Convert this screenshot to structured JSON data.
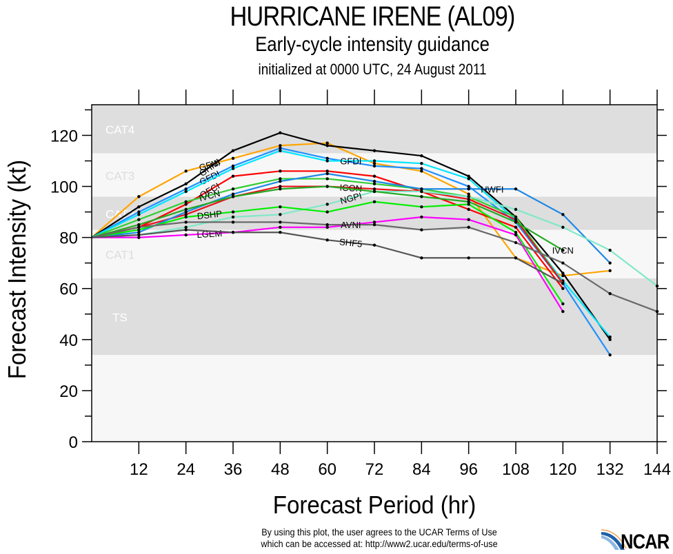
{
  "header": {
    "title": "HURRICANE IRENE (AL09)",
    "subtitle": "Early-cycle intensity guidance",
    "init": "initialized at 0000 UTC, 24 August 2011"
  },
  "footer": {
    "terms_line1": "By using this plot, the user agrees to the UCAR Terms of Use",
    "terms_line2": "which can be accessed at: http://www2.ucar.edu/terms-of-use",
    "logo": "NCAR"
  },
  "chart_data": {
    "type": "line",
    "title": "HURRICANE IRENE (AL09)",
    "subtitle": "Early-cycle intensity guidance, initialized at 0000 UTC, 24 August 2011",
    "xlabel": "Forecast Period (hr)",
    "ylabel": "Forecast Intensity (kt)",
    "xlim": [
      0,
      144
    ],
    "ylim": [
      0,
      132
    ],
    "x_ticks": [
      12,
      24,
      36,
      48,
      60,
      72,
      84,
      96,
      108,
      120,
      132,
      144
    ],
    "y_ticks": [
      0,
      20,
      40,
      60,
      80,
      100,
      120
    ],
    "y_minor_step": 10,
    "grid": false,
    "bands": [
      {
        "label": "TS",
        "from": 34,
        "to": 64,
        "shade": "dark"
      },
      {
        "label": "CAT1",
        "from": 64,
        "to": 83,
        "shade": "light"
      },
      {
        "label": "CAT2",
        "from": 83,
        "to": 96,
        "shade": "dark"
      },
      {
        "label": "CAT3",
        "from": 96,
        "to": 113,
        "shade": "light"
      },
      {
        "label": "CAT4",
        "from": 113,
        "to": 132,
        "shade": "dark"
      }
    ],
    "band_colors": {
      "dark": "#dedede",
      "light": "#f7f7f7",
      "base": "#f7f7f7",
      "label_on_dark": "#ffffff",
      "label_on_light": "#dcdcdc"
    },
    "x": [
      0,
      12,
      24,
      36,
      48,
      60,
      72,
      84,
      96,
      108,
      120,
      132,
      144
    ],
    "series": [
      {
        "name": "GFNI",
        "color": "#ffa500",
        "values": [
          80,
          96,
          106,
          111,
          116,
          117,
          109,
          106,
          97,
          72,
          65,
          67,
          null
        ],
        "label_at": 2
      },
      {
        "name": "GHMI",
        "color": "#000000",
        "values": [
          80,
          92,
          101,
          114,
          121,
          116,
          114,
          112,
          104,
          88,
          66,
          40,
          null
        ],
        "label_at": 2
      },
      {
        "name": "GFDI",
        "color": "#1e90ff",
        "values": [
          80,
          90,
          99,
          108,
          115,
          111,
          108,
          107,
          100,
          86,
          62,
          34,
          null
        ],
        "label_at": 2
      },
      {
        "name": "GFDI",
        "color": "#00e5ff",
        "values": [
          80,
          89,
          98,
          107,
          114,
          110,
          110,
          109,
          103,
          87,
          63,
          41,
          null
        ],
        "label_at": 5
      },
      {
        "name": "OFCI",
        "color": "#ff0000",
        "values": [
          80,
          84,
          93,
          104,
          106,
          106,
          104,
          98,
          91,
          84,
          60,
          null,
          null
        ],
        "label_at": 2
      },
      {
        "name": "IVCN",
        "color": "#32cd32",
        "values": [
          80,
          87,
          94,
          99,
          103,
          103,
          101,
          99,
          96,
          88,
          62,
          null,
          null
        ],
        "label_at": 2
      },
      {
        "name": "ICON",
        "color": "#e8121b",
        "values": [
          80,
          84,
          89,
          96,
          100,
          100,
          99,
          98,
          95,
          87,
          62,
          null,
          null
        ],
        "label_at": 5
      },
      {
        "name": "HWFI",
        "color": "#1e88e5",
        "values": [
          80,
          82,
          90,
          97,
          102,
          105,
          102,
          99,
          99,
          99,
          89,
          70,
          null
        ],
        "label_at": 8
      },
      {
        "name": "NGPI",
        "color": "#7fe8c8",
        "values": [
          80,
          81,
          84,
          88,
          89,
          93,
          98,
          98,
          96,
          91,
          84,
          75,
          61
        ],
        "label_at": 5
      },
      {
        "name": "DSHP",
        "color": "#00ee00",
        "values": [
          80,
          83,
          88,
          90,
          92,
          90,
          94,
          92,
          93,
          82,
          54,
          null,
          null
        ],
        "label_at": 2
      },
      {
        "name": "IVCN",
        "color": "#22aa22",
        "values": [
          80,
          85,
          91,
          96,
          99,
          100,
          98,
          96,
          94,
          86,
          75,
          null,
          null
        ],
        "label_at": 10
      },
      {
        "name": "LGEM",
        "color": "#ff00ff",
        "values": [
          80,
          80,
          81,
          82,
          84,
          84,
          86,
          88,
          87,
          81,
          51,
          null,
          null
        ],
        "label_at": 2
      },
      {
        "name": "AVNI",
        "color": "#696969",
        "values": [
          80,
          84,
          86,
          86,
          86,
          85,
          85,
          83,
          84,
          78,
          70,
          58,
          51
        ],
        "label_at": 5
      },
      {
        "name": "SHF5",
        "color": "#555555",
        "values": [
          80,
          81,
          83,
          82,
          82,
          79,
          77,
          72,
          72,
          72,
          62,
          null,
          null
        ],
        "label_at": 5
      }
    ]
  }
}
